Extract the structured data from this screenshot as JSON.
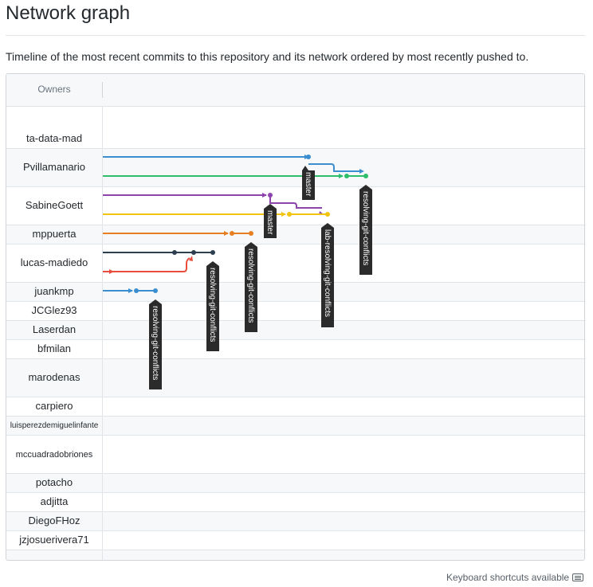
{
  "header": {
    "title": "Network graph",
    "subtitle": "Timeline of the most recent commits to this repository and its network ordered by most recently pushed to."
  },
  "graph": {
    "owners_label": "Owners",
    "owners": [
      {
        "name": "ta-data-mad"
      },
      {
        "name": "Pvillamanario"
      },
      {
        "name": "SabineGoett"
      },
      {
        "name": "mppuerta"
      },
      {
        "name": "lucas-madiedo"
      },
      {
        "name": "juankmp"
      },
      {
        "name": "JCGlez93"
      },
      {
        "name": "Laserdan"
      },
      {
        "name": "bfmilan"
      },
      {
        "name": "marodenas"
      },
      {
        "name": "carpiero"
      },
      {
        "name": "luisperezdemiguelinfante"
      },
      {
        "name": "mccuadradobriones"
      },
      {
        "name": "potacho"
      },
      {
        "name": "adjitta"
      },
      {
        "name": "DiegoFHoz"
      },
      {
        "name": "jzjosuerivera71"
      }
    ],
    "branch_labels": [
      {
        "text": "master",
        "color": "#3b8ed0"
      },
      {
        "text": "resolving-git-conflicts",
        "color": "#2ebd6a"
      },
      {
        "text": "master",
        "color": "#8e44ad"
      },
      {
        "text": "lab-resolving-git-conflicts",
        "color": "#f1c40f"
      },
      {
        "text": "resolving-git-conflicts",
        "color": "#e67e22"
      },
      {
        "text": "resolving-git-conflicts",
        "color": "#2c3e50"
      },
      {
        "text": "resolving-git-conflicts",
        "color": "#3b8ed0"
      }
    ],
    "colors": {
      "blue": "#3b8ed0",
      "green": "#2ebd6a",
      "purple": "#8e44ad",
      "yellow": "#f1c40f",
      "orange": "#e67e22",
      "navy": "#2c3e50",
      "red": "#e74c3c",
      "label_bg": "#2b2b2b"
    }
  },
  "footer": {
    "shortcuts": "Keyboard shortcuts available",
    "keyboard_icon": "keyboard-icon"
  }
}
